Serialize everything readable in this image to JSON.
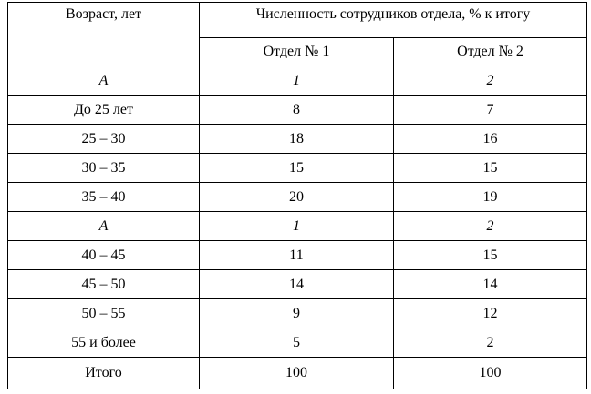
{
  "table": {
    "header": {
      "age": "Возраст, лет",
      "group": "Численность сотрудников отдела, % к итогу",
      "columns": [
        "Отдел № 1",
        "Отдел № 2"
      ]
    },
    "rows": [
      [
        "А",
        "1",
        "2"
      ],
      [
        "До 25 лет",
        8,
        7
      ],
      [
        "25 – 30",
        18,
        16
      ],
      [
        "30 – 35",
        15,
        15
      ],
      [
        "35 – 40",
        20,
        19
      ],
      [
        "А",
        "1",
        "2"
      ],
      [
        "40 – 45",
        11,
        15
      ],
      [
        "45 – 50",
        14,
        14
      ],
      [
        "50 – 55",
        9,
        12
      ],
      [
        "55 и более",
        5,
        2
      ],
      [
        "Итого",
        100,
        100
      ]
    ]
  }
}
